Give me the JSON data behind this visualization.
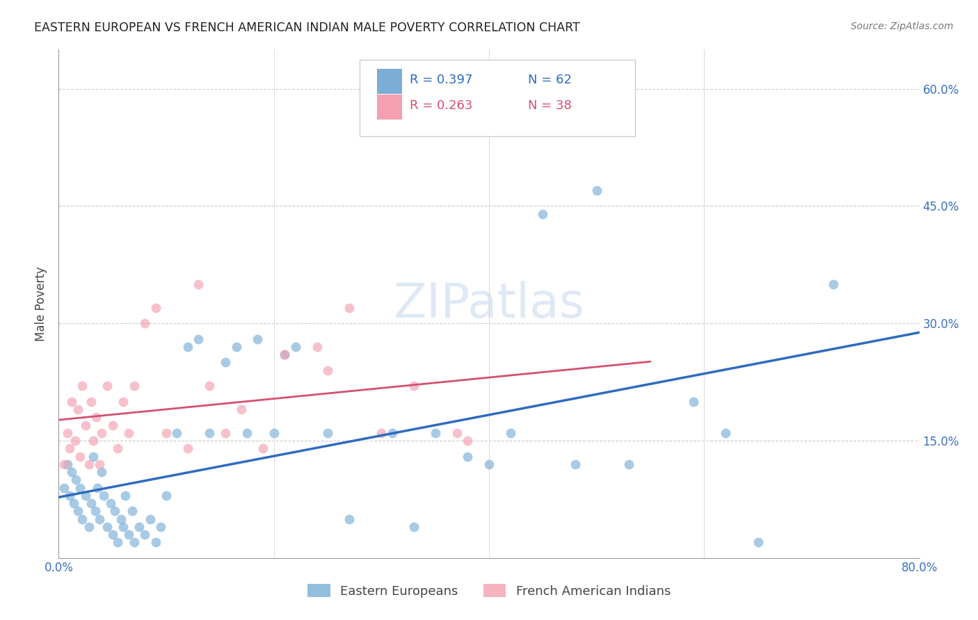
{
  "title": "EASTERN EUROPEAN VS FRENCH AMERICAN INDIAN MALE POVERTY CORRELATION CHART",
  "source": "Source: ZipAtlas.com",
  "ylabel": "Male Poverty",
  "xlim": [
    0.0,
    0.8
  ],
  "ylim": [
    0.0,
    0.65
  ],
  "xtick_positions": [
    0.0,
    0.2,
    0.4,
    0.6,
    0.8
  ],
  "xticklabels": [
    "0.0%",
    "",
    "",
    "",
    "80.0%"
  ],
  "ytick_positions": [
    0.0,
    0.15,
    0.3,
    0.45,
    0.6
  ],
  "yticklabels": [
    "",
    "15.0%",
    "30.0%",
    "45.0%",
    "60.0%"
  ],
  "blue_color": "#7aaed6",
  "pink_color": "#f4a0b0",
  "line_blue": "#2f6bbf",
  "line_pink": "#d45070",
  "label_blue": "Eastern Europeans",
  "label_pink": "French American Indians",
  "watermark": "ZIPatlas",
  "blue_scatter_x": [
    0.005,
    0.008,
    0.01,
    0.012,
    0.014,
    0.016,
    0.018,
    0.02,
    0.022,
    0.025,
    0.028,
    0.03,
    0.032,
    0.034,
    0.036,
    0.038,
    0.04,
    0.042,
    0.045,
    0.048,
    0.05,
    0.052,
    0.055,
    0.058,
    0.06,
    0.062,
    0.065,
    0.068,
    0.07,
    0.075,
    0.08,
    0.085,
    0.09,
    0.095,
    0.1,
    0.11,
    0.12,
    0.13,
    0.14,
    0.155,
    0.165,
    0.175,
    0.185,
    0.2,
    0.21,
    0.22,
    0.25,
    0.27,
    0.31,
    0.33,
    0.35,
    0.38,
    0.4,
    0.42,
    0.45,
    0.48,
    0.5,
    0.53,
    0.59,
    0.62,
    0.65,
    0.72
  ],
  "blue_scatter_y": [
    0.09,
    0.12,
    0.08,
    0.11,
    0.07,
    0.1,
    0.06,
    0.09,
    0.05,
    0.08,
    0.04,
    0.07,
    0.13,
    0.06,
    0.09,
    0.05,
    0.11,
    0.08,
    0.04,
    0.07,
    0.03,
    0.06,
    0.02,
    0.05,
    0.04,
    0.08,
    0.03,
    0.06,
    0.02,
    0.04,
    0.03,
    0.05,
    0.02,
    0.04,
    0.08,
    0.16,
    0.27,
    0.28,
    0.16,
    0.25,
    0.27,
    0.16,
    0.28,
    0.16,
    0.26,
    0.27,
    0.16,
    0.05,
    0.16,
    0.04,
    0.16,
    0.13,
    0.12,
    0.16,
    0.44,
    0.12,
    0.47,
    0.12,
    0.2,
    0.16,
    0.02,
    0.35
  ],
  "pink_scatter_x": [
    0.005,
    0.008,
    0.01,
    0.012,
    0.015,
    0.018,
    0.02,
    0.022,
    0.025,
    0.028,
    0.03,
    0.032,
    0.035,
    0.038,
    0.04,
    0.045,
    0.05,
    0.055,
    0.06,
    0.065,
    0.07,
    0.08,
    0.09,
    0.1,
    0.12,
    0.13,
    0.14,
    0.155,
    0.17,
    0.19,
    0.21,
    0.24,
    0.25,
    0.27,
    0.3,
    0.33,
    0.37,
    0.38
  ],
  "pink_scatter_y": [
    0.12,
    0.16,
    0.14,
    0.2,
    0.15,
    0.19,
    0.13,
    0.22,
    0.17,
    0.12,
    0.2,
    0.15,
    0.18,
    0.12,
    0.16,
    0.22,
    0.17,
    0.14,
    0.2,
    0.16,
    0.22,
    0.3,
    0.32,
    0.16,
    0.14,
    0.35,
    0.22,
    0.16,
    0.19,
    0.14,
    0.26,
    0.27,
    0.24,
    0.32,
    0.16,
    0.22,
    0.16,
    0.15
  ],
  "blue_line_x": [
    0.0,
    0.8
  ],
  "pink_line_x": [
    0.0,
    0.55
  ]
}
